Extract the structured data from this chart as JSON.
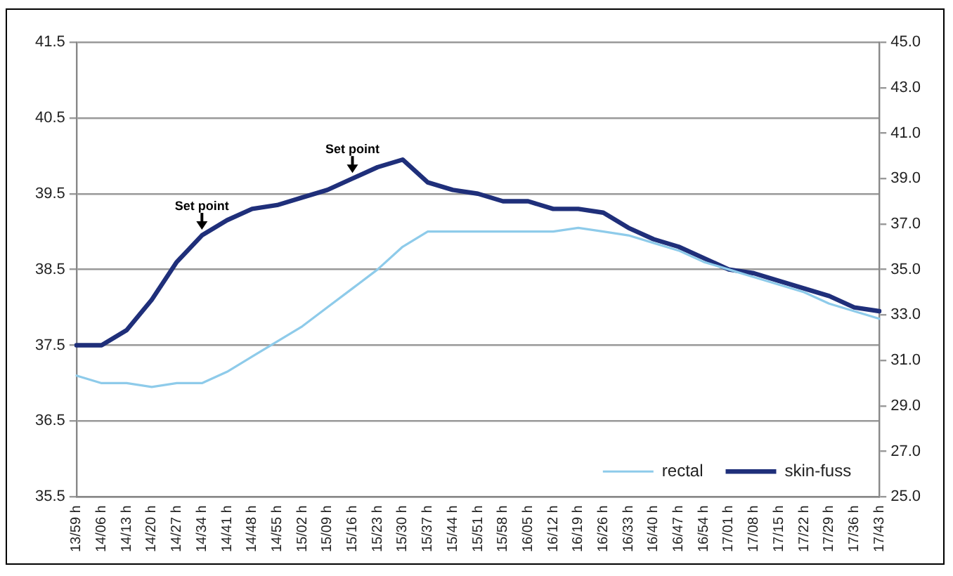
{
  "chart_data": {
    "type": "line",
    "categories": [
      "13/59 h",
      "14/06 h",
      "14/13 h",
      "14/20 h",
      "14/27 h",
      "14/34 h",
      "14/41 h",
      "14/48 h",
      "14/55 h",
      "15/02 h",
      "15/09 h",
      "15/16 h",
      "15/23 h",
      "15/30 h",
      "15/37 h",
      "15/44 h",
      "15/51 h",
      "15/58 h",
      "16/05 h",
      "16/12 h",
      "16/19 h",
      "16/26 h",
      "16/33 h",
      "16/40 h",
      "16/47 h",
      "16/54 h",
      "17/01 h",
      "17/08 h",
      "17/15 h",
      "17/22 h",
      "17/29 h",
      "17/36 h",
      "17/43 h"
    ],
    "series": [
      {
        "name": "rectal",
        "color": "#8ecbea",
        "values": [
          37.1,
          37.0,
          37.0,
          36.95,
          37.0,
          37.0,
          37.15,
          37.35,
          37.55,
          37.75,
          38.0,
          38.25,
          38.5,
          38.8,
          39.0,
          39.0,
          39.0,
          39.0,
          39.0,
          39.0,
          39.05,
          39.0,
          38.95,
          38.85,
          38.75,
          38.6,
          38.5,
          38.4,
          38.3,
          38.2,
          38.05,
          37.95,
          37.85
        ]
      },
      {
        "name": "skin-fuss",
        "color": "#1f2f7a",
        "values": [
          37.5,
          37.5,
          37.7,
          38.1,
          38.6,
          38.95,
          39.15,
          39.3,
          39.35,
          39.45,
          39.55,
          39.7,
          39.85,
          39.95,
          39.65,
          39.55,
          39.5,
          39.4,
          39.4,
          39.3,
          39.3,
          39.25,
          39.05,
          38.9,
          38.8,
          38.65,
          38.5,
          38.45,
          38.35,
          38.25,
          38.15,
          38.0,
          37.95
        ]
      }
    ],
    "ylim": [
      35.5,
      41.5
    ],
    "yticks": [
      {
        "value": 35.5,
        "label": "35.5"
      },
      {
        "value": 36.5,
        "label": "36.5"
      },
      {
        "value": 37.5,
        "label": "37.5"
      },
      {
        "value": 38.5,
        "label": "38.5"
      },
      {
        "value": 39.5,
        "label": "39.5"
      },
      {
        "value": 40.5,
        "label": "40.5"
      },
      {
        "value": 41.5,
        "label": "41.5"
      }
    ],
    "y2lim": [
      25.0,
      45.0
    ],
    "y2ticks": [
      {
        "value": 25,
        "label": "25.0"
      },
      {
        "value": 27,
        "label": "27.0"
      },
      {
        "value": 29,
        "label": "29.0"
      },
      {
        "value": 31,
        "label": "31.0"
      },
      {
        "value": 33,
        "label": "33.0"
      },
      {
        "value": 35,
        "label": "35.0"
      },
      {
        "value": 37,
        "label": "37.0"
      },
      {
        "value": 39,
        "label": "39.0"
      },
      {
        "value": 41,
        "label": "41.0"
      },
      {
        "value": 43,
        "label": "43.0"
      },
      {
        "value": 45,
        "label": "45.0"
      }
    ],
    "annotations": [
      {
        "text": "Set point",
        "x": "14/34 h",
        "y": 38.95
      },
      {
        "text": "Set point",
        "x": "15/16 h",
        "y": 39.7
      }
    ],
    "grid": "y",
    "legend": "bottom right",
    "marker": "none",
    "line_style": "solid"
  }
}
